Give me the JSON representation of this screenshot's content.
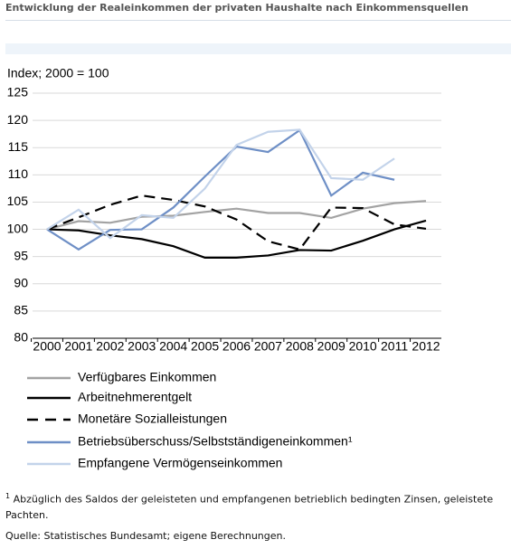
{
  "header": {
    "title": "Entwicklung der Realeinkommen der privaten Haushalte nach Einkommensquellen"
  },
  "chart_data": {
    "type": "line",
    "y_label": "Index; 2000 = 100",
    "categories": [
      "2000",
      "2001",
      "2002",
      "2003",
      "2004",
      "2005",
      "2006",
      "2007",
      "2008",
      "2009",
      "2010",
      "2011",
      "2012"
    ],
    "ylim": [
      80,
      125
    ],
    "yticks": [
      80,
      85,
      90,
      95,
      100,
      105,
      110,
      115,
      120,
      125
    ],
    "grid": true,
    "series": [
      {
        "name": "Verfügbares Einkommen",
        "color": "#a3a3a3",
        "style": "solid",
        "values": [
          100,
          101.5,
          101.2,
          102.3,
          102.5,
          103.2,
          103.8,
          103.0,
          103.0,
          102.1,
          103.8,
          104.8,
          105.2
        ]
      },
      {
        "name": "Arbeitnehmerentgelt",
        "color": "#000000",
        "style": "solid",
        "values": [
          100,
          99.8,
          98.9,
          98.2,
          96.9,
          94.8,
          94.8,
          95.2,
          96.2,
          96.1,
          97.9,
          100.0,
          101.6
        ]
      },
      {
        "name": "Monetäre Sozialleistungen",
        "color": "#000000",
        "style": "dashed",
        "values": [
          100,
          102.2,
          104.5,
          106.2,
          105.4,
          104.2,
          101.8,
          97.8,
          96.3,
          104.0,
          103.9,
          100.9,
          100.1
        ]
      },
      {
        "name": "Betriebsüberschuss/Selbstständigeneinkommen¹",
        "color": "#6e8fc6",
        "style": "solid",
        "values": [
          100,
          96.3,
          99.9,
          100.0,
          104.0,
          109.7,
          115.2,
          114.2,
          118.2,
          106.2,
          110.4,
          109.1,
          null
        ]
      },
      {
        "name": "Empfangene Vermögenseinkommen",
        "color": "#c3d3ea",
        "style": "solid",
        "values": [
          100,
          103.6,
          98.4,
          102.6,
          102.1,
          107.5,
          115.5,
          117.9,
          118.3,
          109.4,
          109.1,
          113.0,
          null
        ]
      }
    ]
  },
  "footnote": {
    "marker": "1",
    "text": "Abzüglich des Saldos der geleisteten und empfangenen betrieblich bedingten Zinsen, geleistete Pachten."
  },
  "source": "Quelle: Statistisches Bundesamt; eigene Berechnungen."
}
